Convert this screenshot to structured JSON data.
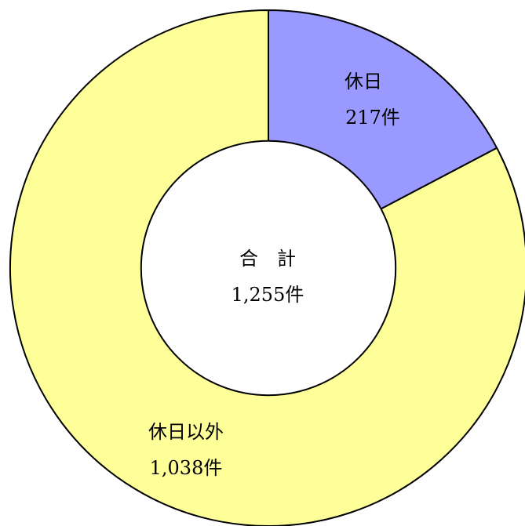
{
  "chart_data": {
    "type": "pie",
    "style": "donut",
    "series": [
      {
        "name": "休日",
        "value": 217,
        "label_value": "217件",
        "color": "#9999ff"
      },
      {
        "name": "休日以外",
        "value": 1038,
        "label_value": "1,038件",
        "color": "#ffff99"
      }
    ],
    "total": {
      "label": "合　計",
      "value": 1255,
      "value_label": "1,255件"
    },
    "start_angle_deg": 0,
    "direction": "clockwise",
    "inner_ratio": 0.493
  }
}
